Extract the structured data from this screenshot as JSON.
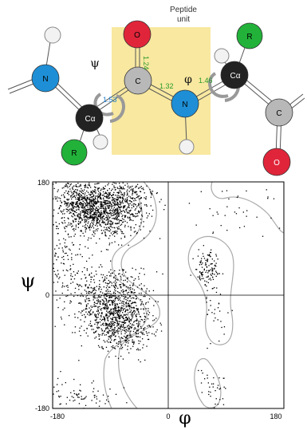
{
  "peptide": {
    "unit_label_line1": "Peptide",
    "unit_label_line2": "unit",
    "psi_symbol": "ψ",
    "phi_symbol": "φ",
    "atoms": [
      {
        "id": "N1",
        "label": "N",
        "color": "#1e8fd6"
      },
      {
        "id": "Ca1",
        "label": "Cα",
        "color": "#222222"
      },
      {
        "id": "R1",
        "label": "R",
        "color": "#22b23a"
      },
      {
        "id": "C1",
        "label": "C",
        "color": "#b8b8b8"
      },
      {
        "id": "O1",
        "label": "O",
        "color": "#e0253a"
      },
      {
        "id": "N2",
        "label": "N",
        "color": "#1e8fd6"
      },
      {
        "id": "Ca2",
        "label": "Cα",
        "color": "#222222"
      },
      {
        "id": "R2",
        "label": "R",
        "color": "#22b23a"
      },
      {
        "id": "C2",
        "label": "C",
        "color": "#b8b8b8"
      },
      {
        "id": "O2",
        "label": "O",
        "color": "#e0253a"
      }
    ],
    "bond_lengths": [
      "1.53",
      "1.24",
      "1.32",
      "1.46"
    ],
    "bond_length_color_primary": "#1e7fd0",
    "bond_length_color_secondary": "#2a9a2a",
    "unit_fill": "#f8e8a0"
  },
  "ramachandran": {
    "y_axis_symbol": "ψ",
    "x_axis_symbol": "φ",
    "y_ticks": [
      "180",
      "0",
      "-180"
    ],
    "x_ticks": [
      "-180",
      "0",
      "180"
    ],
    "x_range": [
      -180,
      180
    ],
    "y_range": [
      -180,
      180
    ],
    "point_color": "#000000",
    "contour_color": "#aaaaaa"
  }
}
